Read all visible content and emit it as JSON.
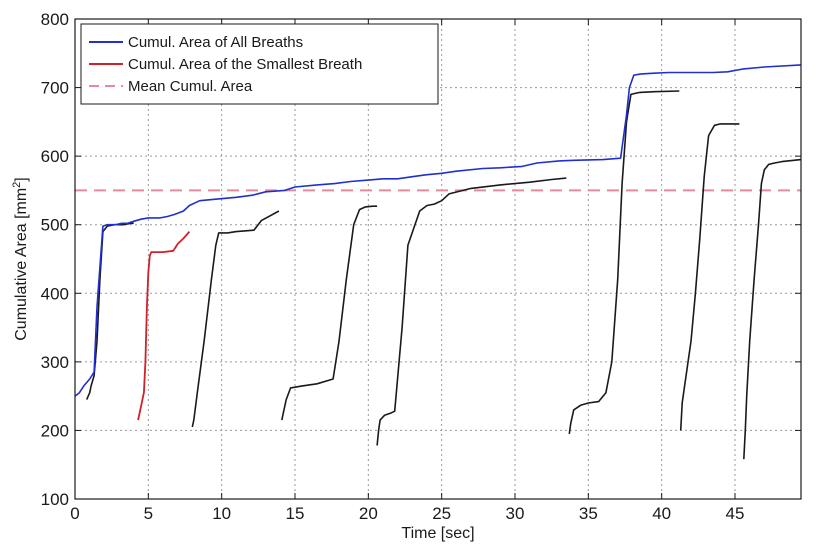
{
  "chart_data": {
    "type": "line",
    "xlabel": "Time [sec]",
    "ylabel": "Cumulative Area [mm",
    "ylabel_sup": "2",
    "ylabel_close": "]",
    "xlim": [
      0,
      49.5
    ],
    "ylim": [
      100,
      800
    ],
    "xticks": [
      0,
      5,
      10,
      15,
      20,
      25,
      30,
      35,
      40,
      45
    ],
    "yticks": [
      100,
      200,
      300,
      400,
      500,
      600,
      700,
      800
    ],
    "grid": true,
    "legend_position": "top-left",
    "legend": [
      {
        "label": "Cumul. Area of All Breaths",
        "color": "#2030d0",
        "dash": "solid"
      },
      {
        "label": "Cumul. Area of the Smallest Breath",
        "color": "#d0202a",
        "dash": "solid"
      },
      {
        "label": "Mean Cumul. Area",
        "color": "#e58a9a",
        "dash": "dashed"
      }
    ],
    "mean_cumul_area": 550,
    "all_breaths": {
      "color": "#2030d0",
      "x": [
        0,
        0.3,
        0.6,
        1.0,
        1.3,
        1.5,
        1.9,
        2.2,
        2.8,
        3.2,
        3.6,
        4.0,
        4.5,
        5.0,
        5.8,
        6.3,
        6.8,
        7.4,
        7.8,
        8.5,
        9.5,
        11.0,
        12.1,
        13.0,
        14.3,
        15.0,
        16.5,
        17.7,
        18.8,
        20.0,
        21.0,
        22.0,
        23.0,
        24.0,
        25.0,
        26.0,
        27.8,
        29.0,
        30.5,
        31.5,
        33.0,
        34.0,
        36.0,
        37.2,
        37.6,
        37.8,
        38.1,
        38.6,
        39.5,
        40.5,
        41.5,
        42.5,
        43.5,
        44.5,
        45.5,
        47.0,
        49.5
      ],
      "y": [
        250,
        255,
        265,
        275,
        285,
        380,
        498,
        500,
        500,
        502,
        502,
        505,
        508,
        510,
        510,
        512,
        515,
        520,
        528,
        535,
        537,
        540,
        543,
        548,
        550,
        555,
        558,
        560,
        563,
        565,
        567,
        567,
        570,
        573,
        575,
        578,
        582,
        583,
        585,
        590,
        593,
        594,
        595,
        597,
        660,
        700,
        718,
        720,
        721,
        722,
        722,
        722,
        722,
        723,
        727,
        730,
        733
      ]
    },
    "smallest_breath": {
      "color": "#d0202a",
      "x": [
        4.3,
        4.5,
        4.7,
        4.8,
        4.9,
        5.0,
        5.1,
        5.2,
        5.4,
        6.0,
        6.7,
        7.0,
        7.4,
        7.8
      ],
      "y": [
        215,
        235,
        255,
        300,
        380,
        430,
        455,
        460,
        460,
        460,
        462,
        472,
        480,
        490
      ]
    },
    "breaths": [
      {
        "x": [
          0.8,
          1.0,
          1.1,
          1.3,
          1.5,
          1.7,
          1.9,
          2.2,
          2.7,
          3.3,
          3.8,
          4.0
        ],
        "y": [
          245,
          255,
          265,
          280,
          330,
          420,
          490,
          498,
          500,
          500,
          502,
          502
        ]
      },
      {
        "x": [
          8.0,
          8.1,
          8.4,
          8.8,
          9.3,
          9.6,
          9.8,
          10.4,
          11.0,
          12.2,
          12.7,
          13.3,
          13.9
        ],
        "y": [
          205,
          215,
          265,
          330,
          420,
          470,
          488,
          488,
          490,
          492,
          506,
          513,
          520
        ]
      },
      {
        "x": [
          14.1,
          14.4,
          14.7,
          15.5,
          16.5,
          17.6,
          18.0,
          18.5,
          19.0,
          19.4,
          19.8,
          20.3,
          20.6
        ],
        "y": [
          215,
          245,
          262,
          265,
          268,
          275,
          330,
          420,
          500,
          522,
          526,
          527,
          527
        ]
      },
      {
        "x": [
          20.6,
          20.7,
          20.8,
          21.1,
          21.5,
          21.8,
          22.3,
          22.7,
          23.5,
          24.0,
          24.5,
          25.0,
          25.5,
          27.0,
          29.0,
          31.0,
          32.5,
          33.5
        ],
        "y": [
          178,
          200,
          215,
          222,
          225,
          228,
          350,
          470,
          520,
          528,
          530,
          535,
          545,
          553,
          558,
          562,
          566,
          568
        ]
      },
      {
        "x": [
          33.7,
          33.8,
          34.0,
          34.5,
          35.0,
          35.7,
          36.2,
          36.6,
          37.0,
          37.3,
          37.6,
          37.9,
          38.5,
          39.5,
          41.2
        ],
        "y": [
          195,
          210,
          230,
          237,
          240,
          242,
          255,
          300,
          420,
          560,
          650,
          690,
          693,
          694,
          695
        ]
      },
      {
        "x": [
          41.3,
          41.4,
          41.6,
          42.0,
          42.3,
          42.6,
          42.9,
          43.2,
          43.6,
          44.0,
          45.3
        ],
        "y": [
          200,
          240,
          270,
          330,
          400,
          480,
          570,
          630,
          645,
          647,
          647
        ]
      },
      {
        "x": [
          45.6,
          45.7,
          45.8,
          46.0,
          46.3,
          46.6,
          46.8,
          47.0,
          47.3,
          47.7,
          48.2,
          49.5
        ],
        "y": [
          158,
          200,
          250,
          330,
          420,
          500,
          560,
          580,
          588,
          590,
          592,
          595
        ]
      }
    ],
    "breath_color": "#1a1a1a"
  }
}
